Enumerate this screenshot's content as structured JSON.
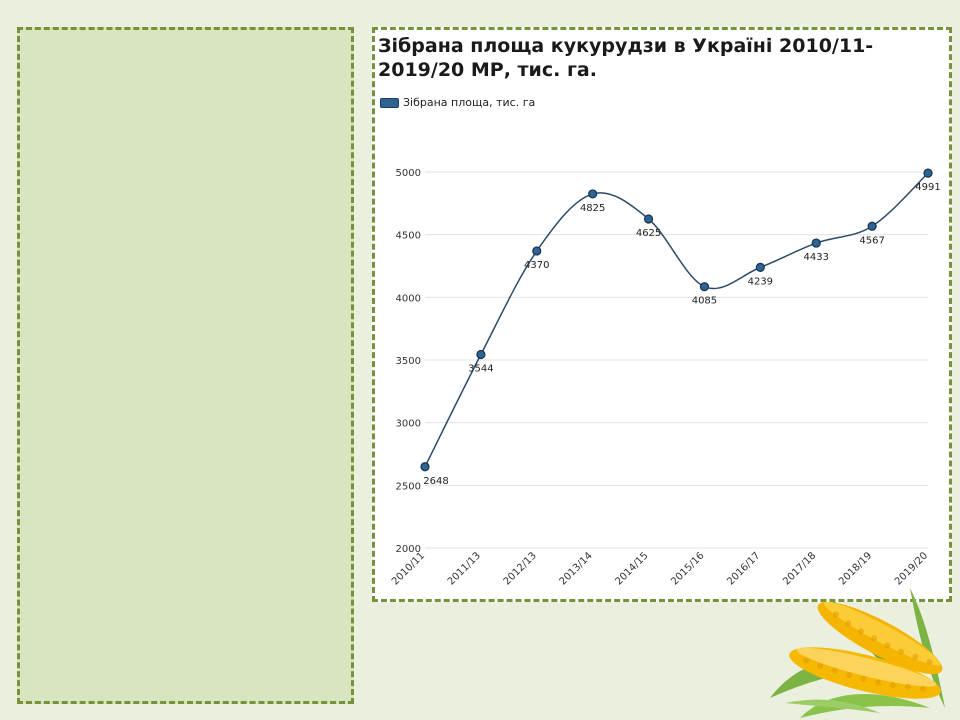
{
  "chart_data": {
    "type": "line",
    "title": "Зібрана площа кукурудзи в Україні 2010/11-2019/20 МР, тис. га.",
    "categories": [
      "2010/11",
      "2011/13",
      "2012/13",
      "2013/14",
      "2014/15",
      "2015/16",
      "2016/17",
      "2017/18",
      "2018/19",
      "2019/20"
    ],
    "series": [
      {
        "name": "Зібрана площа, тис. га",
        "values": [
          2648,
          3544,
          4370,
          4825,
          4625,
          4085,
          4239,
          4433,
          4567,
          4991
        ]
      }
    ],
    "xlabel": "",
    "ylabel": "",
    "ylim": [
      2000,
      5000
    ],
    "yticks": [
      2000,
      2500,
      3000,
      3500,
      4000,
      4500,
      5000
    ],
    "grid": true,
    "legend": "top-left",
    "smooth": true
  },
  "colors": {
    "line": "#2b4a6b",
    "marker_fill": "#2f6392",
    "marker_stroke": "#16324f",
    "grid": "#e3e3e3",
    "frame_border": "#76923c",
    "panel_fill": "#d8e5bf"
  },
  "decor": {
    "corn_image": "corn-cobs-image"
  }
}
